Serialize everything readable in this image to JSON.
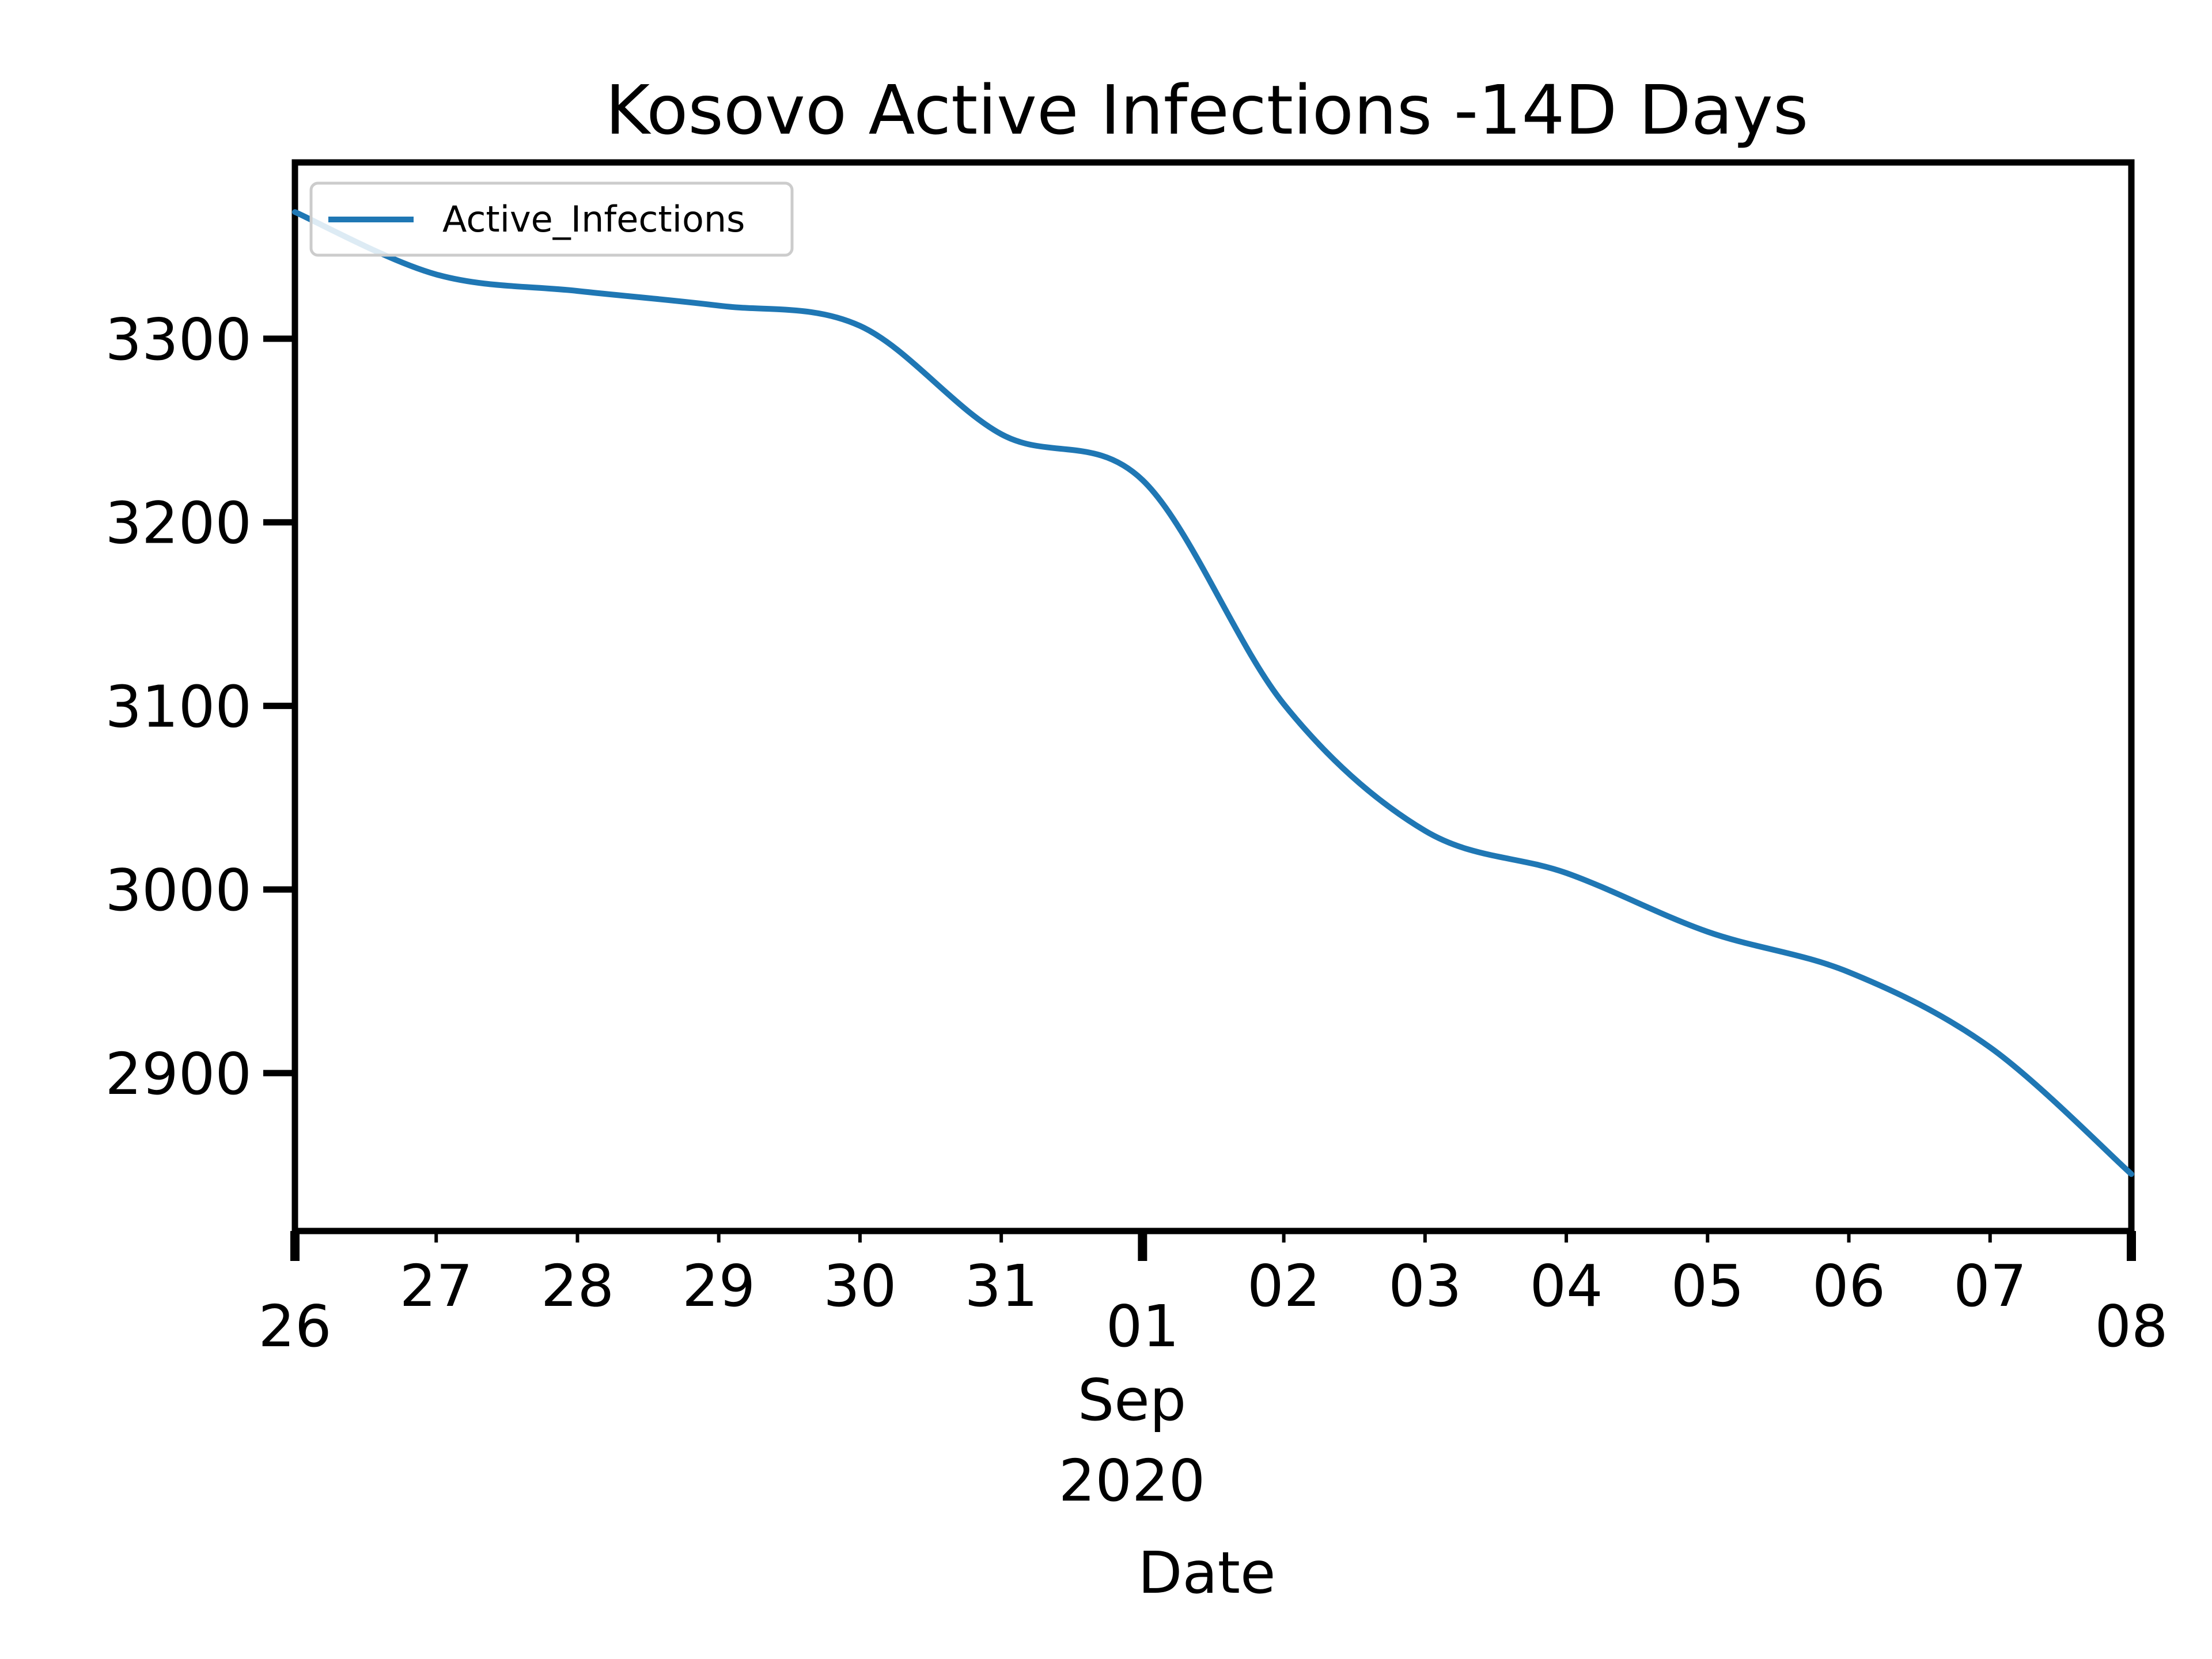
{
  "chart_data": {
    "type": "line",
    "title": "Kosovo Active Infections -14D Days",
    "xlabel": "Date",
    "ylabel": "",
    "x_month_label": "Sep",
    "x_year_label": "2020",
    "x_range": [
      "2020-08-26",
      "2020-09-08"
    ],
    "xticks": [
      {
        "date": "2020-08-26",
        "label": "26",
        "major": true
      },
      {
        "date": "2020-08-27",
        "label": "27",
        "major": false
      },
      {
        "date": "2020-08-28",
        "label": "28",
        "major": false
      },
      {
        "date": "2020-08-29",
        "label": "29",
        "major": false
      },
      {
        "date": "2020-08-30",
        "label": "30",
        "major": false
      },
      {
        "date": "2020-08-31",
        "label": "31",
        "major": false
      },
      {
        "date": "2020-09-01",
        "label": "01",
        "major": true
      },
      {
        "date": "2020-09-02",
        "label": "02",
        "major": false
      },
      {
        "date": "2020-09-03",
        "label": "03",
        "major": false
      },
      {
        "date": "2020-09-04",
        "label": "04",
        "major": false
      },
      {
        "date": "2020-09-05",
        "label": "05",
        "major": false
      },
      {
        "date": "2020-09-06",
        "label": "06",
        "major": false
      },
      {
        "date": "2020-09-07",
        "label": "07",
        "major": false
      },
      {
        "date": "2020-09-08",
        "label": "08",
        "major": true
      }
    ],
    "ylim": [
      2814,
      3396
    ],
    "yticks": [
      2900,
      3000,
      3100,
      3200,
      3300
    ],
    "ytick_labels": [
      "2900",
      "3000",
      "3100",
      "3200",
      "3300"
    ],
    "legend": {
      "position": "upper-left"
    },
    "grid": false,
    "series": [
      {
        "name": "Active_Infections",
        "color": "#1f77b4",
        "x": [
          "2020-08-26",
          "2020-08-27",
          "2020-08-28",
          "2020-08-29",
          "2020-08-30",
          "2020-08-31",
          "2020-09-01",
          "2020-09-02",
          "2020-09-03",
          "2020-09-04",
          "2020-09-05",
          "2020-09-06",
          "2020-09-07",
          "2020-09-08"
        ],
        "y": [
          3369,
          3335,
          3326,
          3318,
          3307,
          3248,
          3223,
          3101,
          3032,
          3009,
          2977,
          2955,
          2914,
          2845
        ]
      }
    ]
  }
}
